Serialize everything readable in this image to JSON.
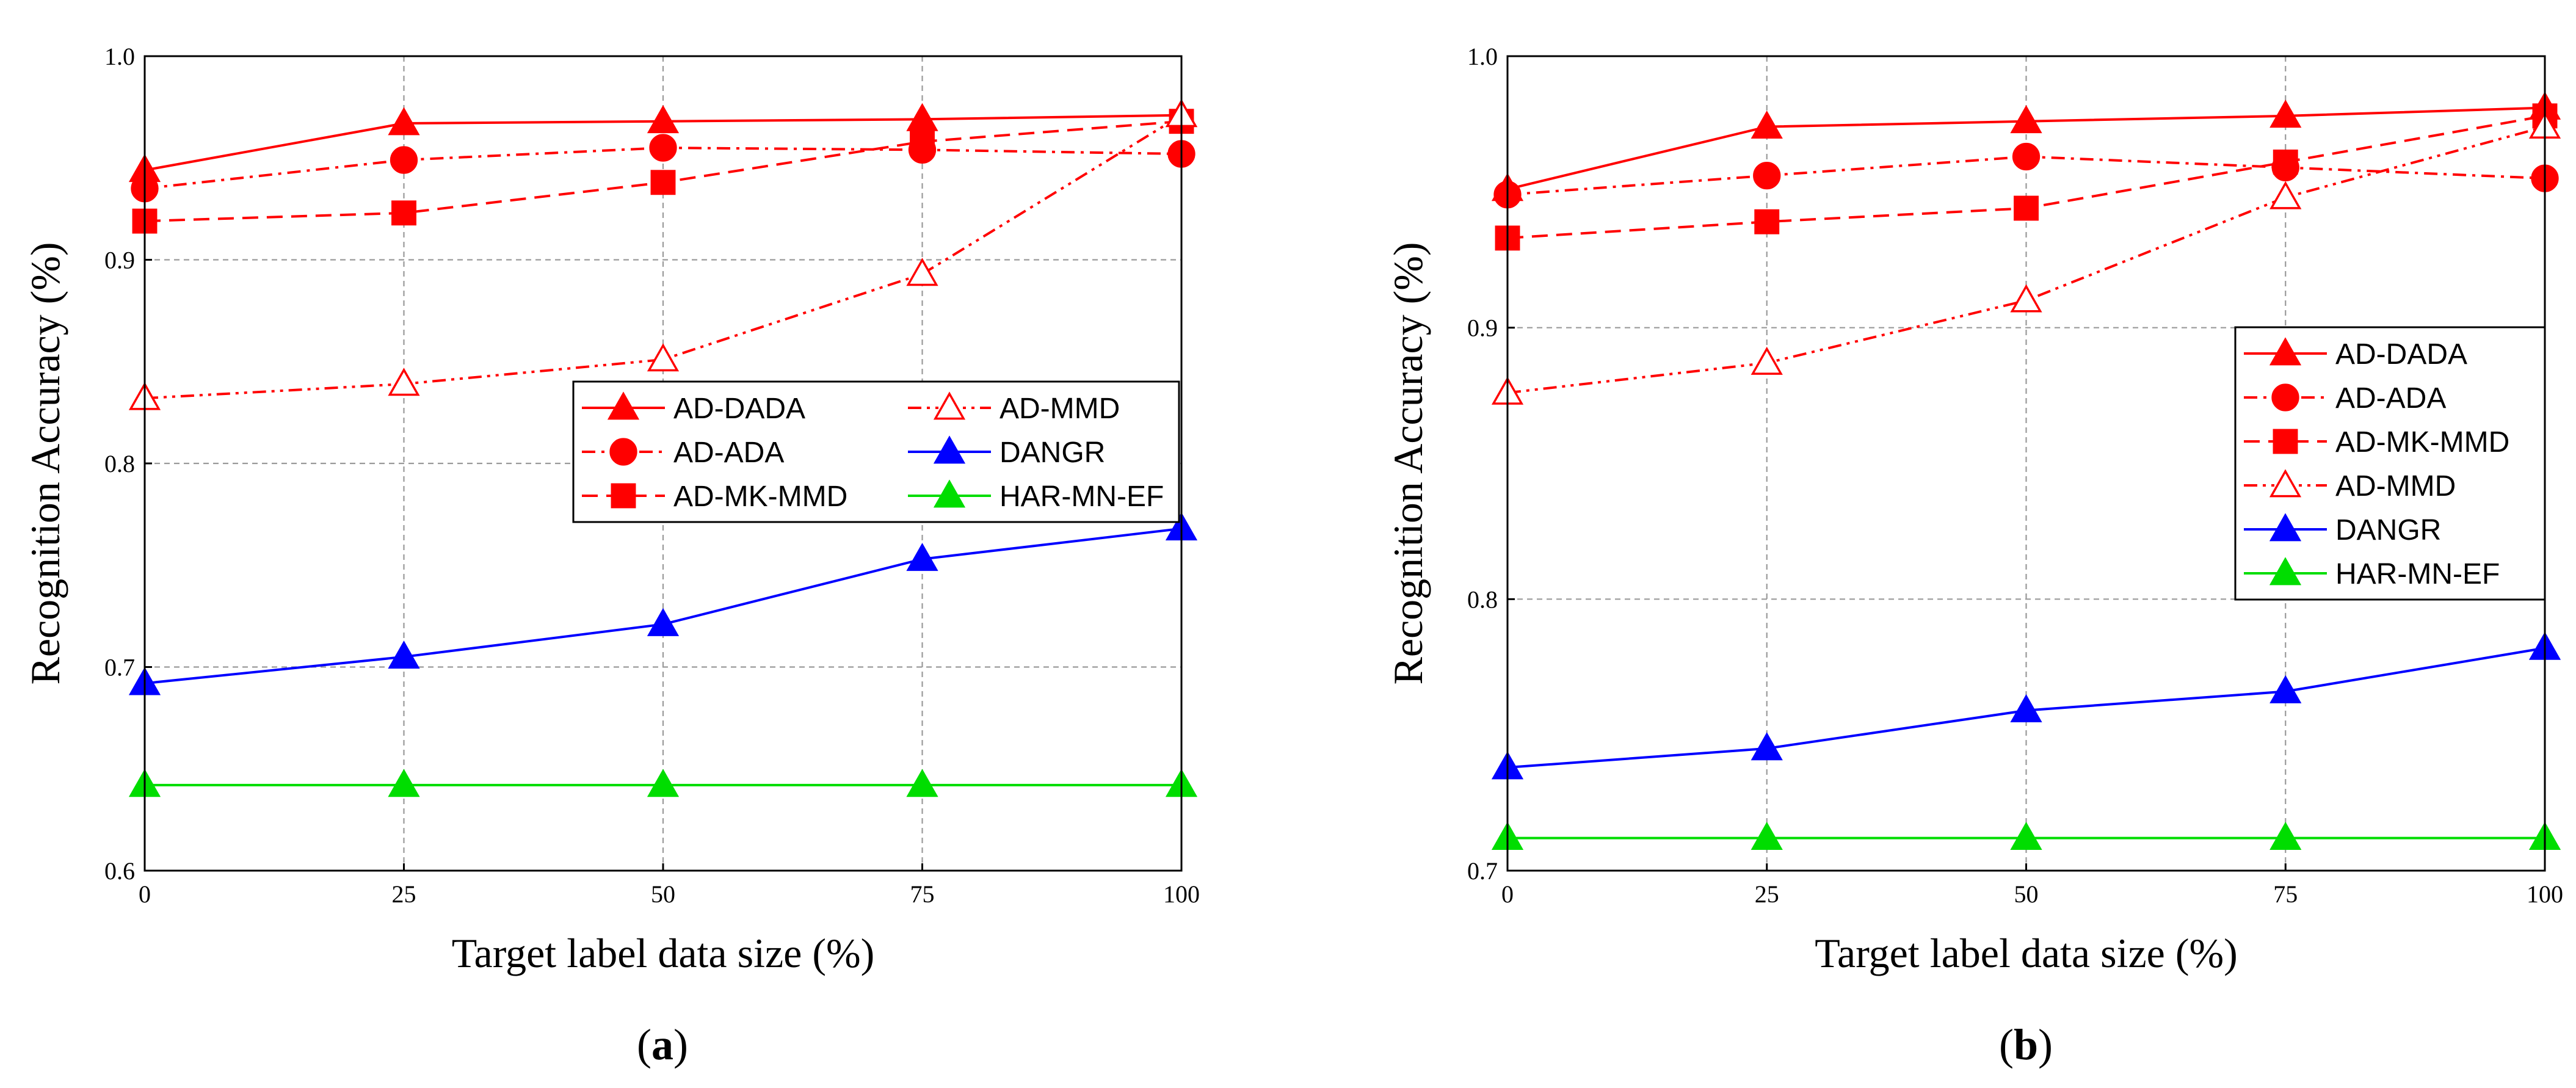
{
  "chart_data": [
    {
      "type": "line",
      "panel": "a",
      "caption": "(a)",
      "xlabel": "Target label data size (%)",
      "ylabel": "Recognition Accuracy (%)",
      "x": [
        0,
        25,
        50,
        75,
        100
      ],
      "x_ticks": [
        "0",
        "25",
        "50",
        "75",
        "100"
      ],
      "y_ticks": [
        "0.6",
        "0.7",
        "0.8",
        "0.9",
        "1.0"
      ],
      "y_tick_values": [
        0.6,
        0.7,
        0.8,
        0.9,
        1.0
      ],
      "xlim": [
        0,
        100
      ],
      "ylim": [
        0.6,
        1.0
      ],
      "grid": true,
      "legend_columns": 2,
      "legend_position": "center-right",
      "legend_order": [
        "AD-DADA",
        "AD-MMD",
        "AD-ADA",
        "DANGR",
        "AD-MK-MMD",
        "HAR-MN-EF"
      ],
      "series": [
        {
          "name": "AD-DADA",
          "values": [
            0.944,
            0.967,
            0.968,
            0.969,
            0.971
          ],
          "color": "#ff0000",
          "marker": "triangle",
          "filled": true,
          "dash": "solid"
        },
        {
          "name": "AD-ADA",
          "values": [
            0.935,
            0.949,
            0.955,
            0.954,
            0.952
          ],
          "color": "#ff0000",
          "marker": "circle",
          "filled": true,
          "dash": "dashdot"
        },
        {
          "name": "AD-MK-MMD",
          "values": [
            0.919,
            0.923,
            0.938,
            0.958,
            0.968
          ],
          "color": "#ff0000",
          "marker": "square",
          "filled": true,
          "dash": "dashed"
        },
        {
          "name": "AD-MMD",
          "values": [
            0.832,
            0.839,
            0.851,
            0.893,
            0.971
          ],
          "color": "#ff0000",
          "marker": "triangle",
          "filled": false,
          "dash": "dashdotdot"
        },
        {
          "name": "DANGR",
          "values": [
            0.692,
            0.705,
            0.721,
            0.753,
            0.768
          ],
          "color": "#0000ff",
          "marker": "triangle",
          "filled": true,
          "dash": "solid"
        },
        {
          "name": "HAR-MN-EF",
          "values": [
            0.642,
            0.642,
            0.642,
            0.642,
            0.642
          ],
          "color": "#00dd00",
          "marker": "triangle",
          "filled": true,
          "dash": "solid"
        }
      ]
    },
    {
      "type": "line",
      "panel": "b",
      "caption": "(b)",
      "xlabel": "Target label data size (%)",
      "ylabel": "Recognition Accuracy (%)",
      "x": [
        0,
        25,
        50,
        75,
        100
      ],
      "x_ticks": [
        "0",
        "25",
        "50",
        "75",
        "100"
      ],
      "y_ticks": [
        "0.7",
        "0.8",
        "0.9",
        "1.0"
      ],
      "y_tick_values": [
        0.7,
        0.8,
        0.9,
        1.0
      ],
      "xlim": [
        0,
        100
      ],
      "ylim": [
        0.7,
        1.0
      ],
      "grid": true,
      "legend_columns": 1,
      "legend_position": "center-right",
      "legend_order": [
        "AD-DADA",
        "AD-ADA",
        "AD-MK-MMD",
        "AD-MMD",
        "DANGR",
        "HAR-MN-EF"
      ],
      "series": [
        {
          "name": "AD-DADA",
          "values": [
            0.951,
            0.974,
            0.976,
            0.978,
            0.981
          ],
          "color": "#ff0000",
          "marker": "triangle",
          "filled": true,
          "dash": "solid"
        },
        {
          "name": "AD-ADA",
          "values": [
            0.949,
            0.956,
            0.963,
            0.959,
            0.955
          ],
          "color": "#ff0000",
          "marker": "circle",
          "filled": true,
          "dash": "dashdot"
        },
        {
          "name": "AD-MK-MMD",
          "values": [
            0.933,
            0.939,
            0.944,
            0.961,
            0.978
          ],
          "color": "#ff0000",
          "marker": "square",
          "filled": true,
          "dash": "dashed"
        },
        {
          "name": "AD-MMD",
          "values": [
            0.876,
            0.887,
            0.91,
            0.948,
            0.974
          ],
          "color": "#ff0000",
          "marker": "triangle",
          "filled": false,
          "dash": "dashdotdot"
        },
        {
          "name": "DANGR",
          "values": [
            0.738,
            0.745,
            0.759,
            0.766,
            0.782
          ],
          "color": "#0000ff",
          "marker": "triangle",
          "filled": true,
          "dash": "solid"
        },
        {
          "name": "HAR-MN-EF",
          "values": [
            0.712,
            0.712,
            0.712,
            0.712,
            0.712
          ],
          "color": "#00dd00",
          "marker": "triangle",
          "filled": true,
          "dash": "solid"
        }
      ]
    }
  ]
}
